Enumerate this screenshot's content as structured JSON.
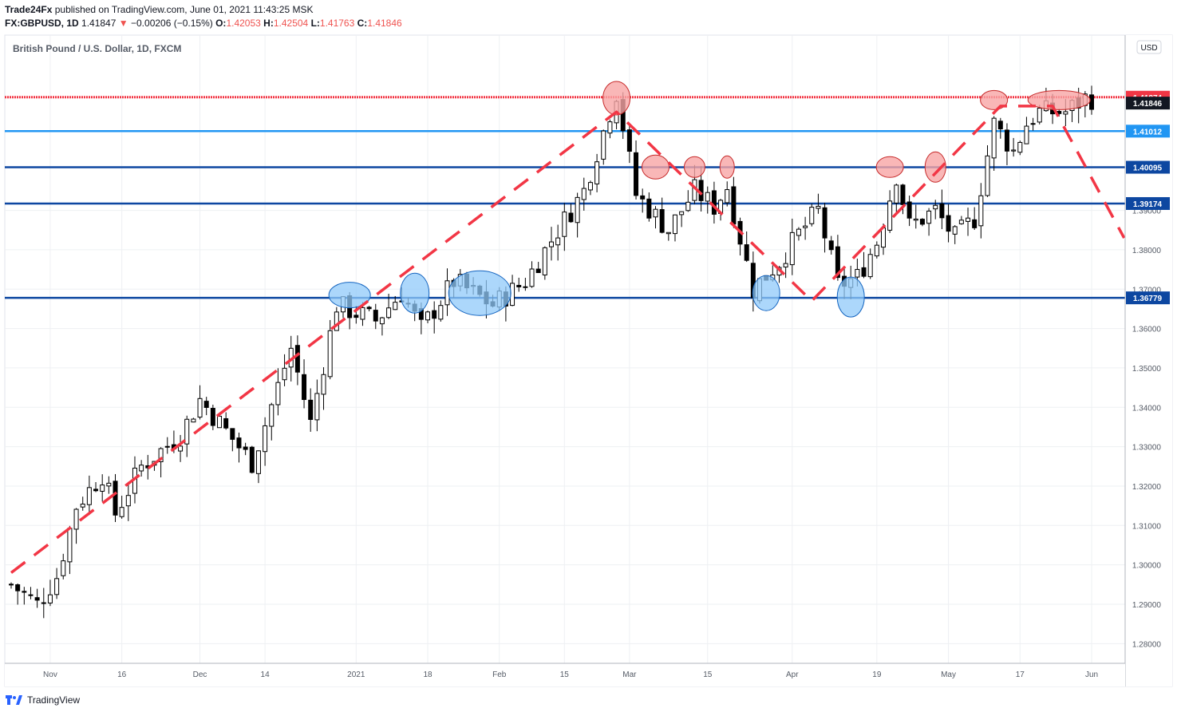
{
  "header": {
    "publisher": "Trade24Fx",
    "published_text": "published on TradingView.com, June 01, 2021 11:43:25 MSK",
    "symbol": "FX:GBPUSD, 1D",
    "last": "1.41847",
    "change_arrow": "▼",
    "change": "−0.00206 (−0.15%)",
    "o_label": "O:",
    "o": "1.42053",
    "h_label": "H:",
    "h": "1.42504",
    "l_label": "L:",
    "l": "1.41763",
    "c_label": "C:",
    "c": "1.41846"
  },
  "footer": {
    "brand": "TradingView"
  },
  "currency_button": "USD",
  "colors": {
    "bull": "#ffffff",
    "bear": "#000000",
    "wick": "#000000",
    "red": "#f23645",
    "light_blue": "#2196f3",
    "dark_blue": "#0d47a1",
    "trend": "#f23645",
    "bubble_red": "#f7a5a5",
    "bubble_blue": "#90caf9",
    "grid": "#eef0f3",
    "axis_text": "#555b66"
  },
  "chart_data": {
    "type": "candlestick",
    "title": "British Pound / U.S. Dollar, 1D, FXCM",
    "ylim": [
      1.275,
      1.4345
    ],
    "y_ticks": [
      1.28,
      1.29,
      1.3,
      1.31,
      1.32,
      1.33,
      1.34,
      1.35,
      1.36,
      1.37,
      1.38,
      1.39
    ],
    "x_ticks": [
      {
        "label": "Nov",
        "i": 6
      },
      {
        "label": "16",
        "i": 17
      },
      {
        "label": "Dec",
        "i": 29
      },
      {
        "label": "14",
        "i": 39
      },
      {
        "label": "2021",
        "i": 53
      },
      {
        "label": "18",
        "i": 64
      },
      {
        "label": "Feb",
        "i": 75
      },
      {
        "label": "15",
        "i": 85
      },
      {
        "label": "Mar",
        "i": 95
      },
      {
        "label": "15",
        "i": 107
      },
      {
        "label": "Apr",
        "i": 120
      },
      {
        "label": "19",
        "i": 133
      },
      {
        "label": "May",
        "i": 144
      },
      {
        "label": "17",
        "i": 155
      },
      {
        "label": "Jun",
        "i": 166
      }
    ],
    "n_bars": 167,
    "anchors": [
      {
        "i": 0,
        "v": 1.295
      },
      {
        "i": 4,
        "v": 1.29
      },
      {
        "i": 7,
        "v": 1.297
      },
      {
        "i": 10,
        "v": 1.315
      },
      {
        "i": 14,
        "v": 1.323
      },
      {
        "i": 16,
        "v": 1.313
      },
      {
        "i": 20,
        "v": 1.325
      },
      {
        "i": 26,
        "v": 1.333
      },
      {
        "i": 29,
        "v": 1.342
      },
      {
        "i": 34,
        "v": 1.332
      },
      {
        "i": 37,
        "v": 1.326
      },
      {
        "i": 43,
        "v": 1.355
      },
      {
        "i": 46,
        "v": 1.336
      },
      {
        "i": 50,
        "v": 1.366
      },
      {
        "i": 56,
        "v": 1.362
      },
      {
        "i": 60,
        "v": 1.369
      },
      {
        "i": 63,
        "v": 1.36
      },
      {
        "i": 68,
        "v": 1.372
      },
      {
        "i": 74,
        "v": 1.366
      },
      {
        "i": 79,
        "v": 1.372
      },
      {
        "i": 84,
        "v": 1.385
      },
      {
        "i": 88,
        "v": 1.395
      },
      {
        "i": 93,
        "v": 1.42
      },
      {
        "i": 96,
        "v": 1.394
      },
      {
        "i": 101,
        "v": 1.385
      },
      {
        "i": 105,
        "v": 1.395
      },
      {
        "i": 108,
        "v": 1.391
      },
      {
        "i": 110,
        "v": 1.396
      },
      {
        "i": 114,
        "v": 1.37
      },
      {
        "i": 118,
        "v": 1.377
      },
      {
        "i": 121,
        "v": 1.384
      },
      {
        "i": 124,
        "v": 1.39
      },
      {
        "i": 127,
        "v": 1.371
      },
      {
        "i": 130,
        "v": 1.373
      },
      {
        "i": 133,
        "v": 1.382
      },
      {
        "i": 136,
        "v": 1.399
      },
      {
        "i": 138,
        "v": 1.386
      },
      {
        "i": 142,
        "v": 1.39
      },
      {
        "i": 145,
        "v": 1.383
      },
      {
        "i": 148,
        "v": 1.388
      },
      {
        "i": 151,
        "v": 1.412
      },
      {
        "i": 154,
        "v": 1.405
      },
      {
        "i": 156,
        "v": 1.412
      },
      {
        "i": 158,
        "v": 1.415
      },
      {
        "i": 162,
        "v": 1.415
      },
      {
        "i": 165,
        "v": 1.4185
      }
    ],
    "levels": [
      {
        "value": 1.41874,
        "label": "1.41874",
        "kind": "red"
      },
      {
        "value": 1.41846,
        "label": "1.41846",
        "kind": "last"
      },
      {
        "value": 1.41012,
        "label": "1.41012",
        "kind": "light_blue"
      },
      {
        "value": 1.40095,
        "label": "1.40095",
        "kind": "dark_blue"
      },
      {
        "value": 1.39174,
        "label": "1.39174",
        "kind": "dark_blue"
      },
      {
        "value": 1.36779,
        "label": "1.36779",
        "kind": "dark_blue"
      }
    ],
    "trend_line": [
      {
        "i": 0,
        "v": 1.298
      },
      {
        "i": 93,
        "v": 1.415
      },
      {
        "i": 123,
        "v": 1.367
      },
      {
        "i": 152,
        "v": 1.4165
      },
      {
        "i": 160,
        "v": 1.4165
      },
      {
        "i": 171,
        "v": 1.383
      }
    ],
    "bubbles_red": [
      {
        "i": 93,
        "v": 1.4185,
        "rx": 17,
        "ry": 21
      },
      {
        "i": 99,
        "v": 1.401,
        "rx": 17,
        "ry": 15
      },
      {
        "i": 105,
        "v": 1.401,
        "rx": 13,
        "ry": 13
      },
      {
        "i": 110,
        "v": 1.401,
        "rx": 9,
        "ry": 14
      },
      {
        "i": 135,
        "v": 1.401,
        "rx": 17,
        "ry": 13
      },
      {
        "i": 142,
        "v": 1.401,
        "rx": 13,
        "ry": 19
      },
      {
        "i": 151,
        "v": 1.418,
        "rx": 17,
        "ry": 12
      },
      {
        "i": 161,
        "v": 1.418,
        "rx": 39,
        "ry": 12
      }
    ],
    "bubbles_blue": [
      {
        "i": 52,
        "v": 1.3685,
        "rx": 26,
        "ry": 16
      },
      {
        "i": 62,
        "v": 1.369,
        "rx": 18,
        "ry": 25
      },
      {
        "i": 72,
        "v": 1.369,
        "rx": 39,
        "ry": 28
      },
      {
        "i": 116,
        "v": 1.369,
        "rx": 17,
        "ry": 22
      },
      {
        "i": 129,
        "v": 1.368,
        "rx": 17,
        "ry": 25
      }
    ]
  }
}
